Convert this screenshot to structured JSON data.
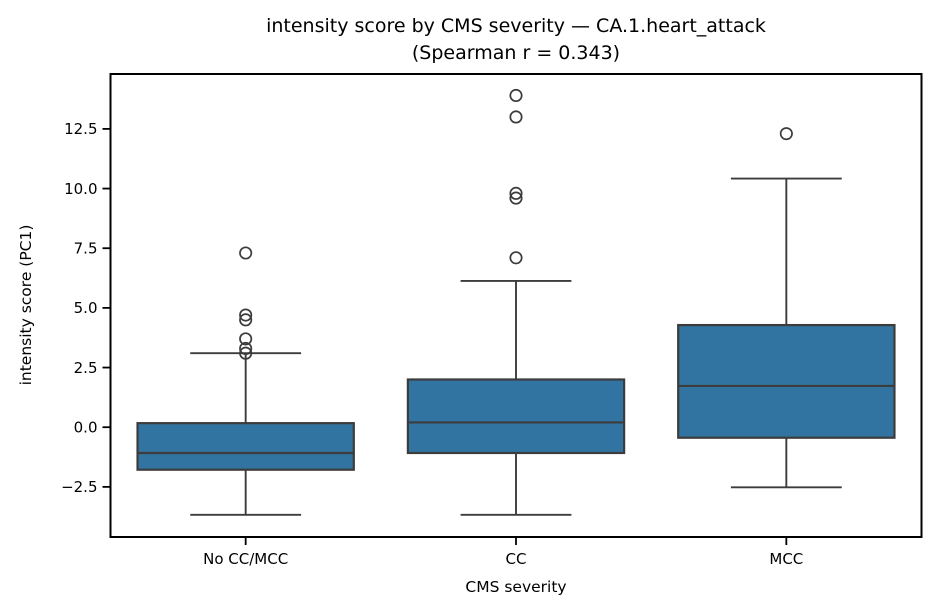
{
  "title": {
    "line1": "intensity score by CMS severity — CA.1.heart_attack",
    "line2": "(Spearman r = 0.343)"
  },
  "chart_data": {
    "type": "box",
    "title": "intensity score by CMS severity — CA.1.heart_attack",
    "subtitle": "(Spearman r = 0.343)",
    "xlabel": "CMS severity",
    "ylabel": "intensity score (PC1)",
    "categories": [
      "No CC/MCC",
      "CC",
      "MCC"
    ],
    "ylim": [
      -4.6,
      14.8
    ],
    "yticks": [
      -2.5,
      0.0,
      2.5,
      5.0,
      7.5,
      10.0,
      12.5
    ],
    "grid": false,
    "legend": "none",
    "groups": [
      {
        "label": "No CC/MCC",
        "whisker_low": -3.67,
        "q1": -1.78,
        "median": -1.08,
        "q3": 0.17,
        "whisker_high": 3.1,
        "outliers": [
          3.1,
          3.3,
          3.7,
          4.5,
          4.7,
          7.3
        ]
      },
      {
        "label": "CC",
        "whisker_low": -3.67,
        "q1": -1.08,
        "median": 0.2,
        "q3": 2.0,
        "whisker_high": 6.13,
        "outliers": [
          7.1,
          9.6,
          9.8,
          13.0,
          13.9
        ]
      },
      {
        "label": "MCC",
        "whisker_low": -2.52,
        "q1": -0.44,
        "median": 1.73,
        "q3": 4.28,
        "whisker_high": 10.42,
        "outliers": [
          12.3
        ]
      }
    ],
    "style": {
      "box_fill": "#3274a1",
      "line_color": "#3c3c3c",
      "spine_color": "#000000",
      "text_color": "#000000",
      "background": "#ffffff"
    }
  }
}
